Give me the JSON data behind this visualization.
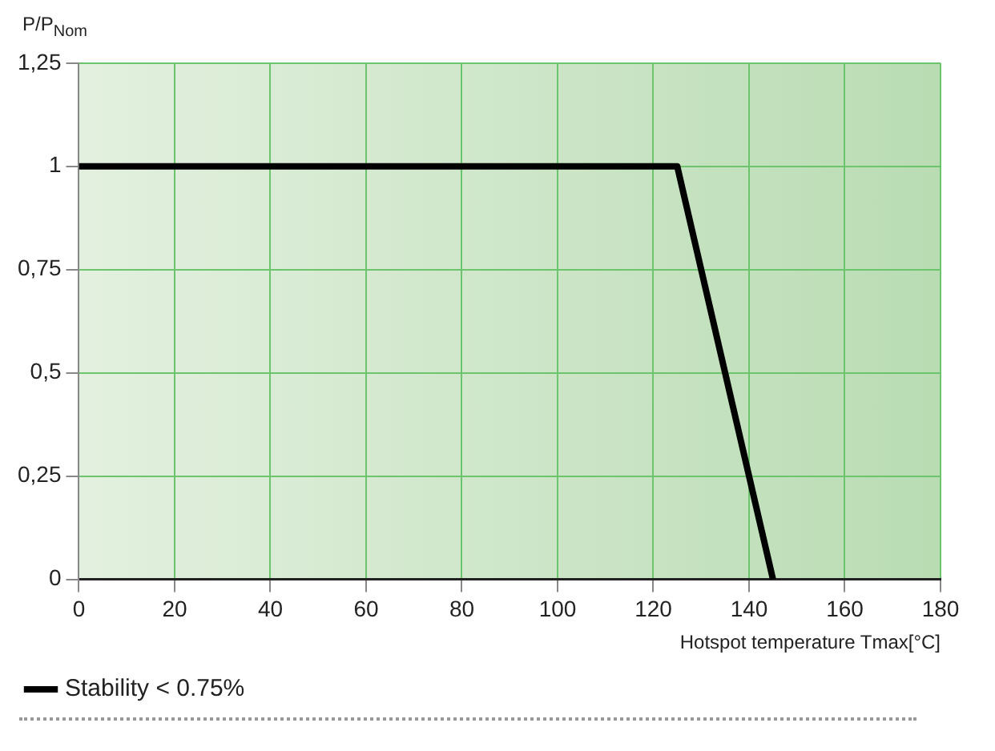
{
  "chart_data": {
    "type": "line",
    "xlabel": "Hotspot temperature Tmax[°C]",
    "ylabel": "P/P$_{Nom}$",
    "x": [
      0,
      125,
      145
    ],
    "series": [
      {
        "name": "Stability < 0.75%",
        "color": "#000000",
        "values": [
          1,
          1,
          0
        ]
      }
    ],
    "xlim": [
      0,
      180
    ],
    "xticks": [
      0,
      20,
      40,
      60,
      80,
      100,
      120,
      140,
      160,
      180
    ],
    "ylim": [
      0,
      1.25
    ],
    "yticks": [
      0,
      {
        "value": 0.25,
        "label": "0,25"
      },
      {
        "value": 0.5,
        "label": "0,5"
      },
      {
        "value": 0.75,
        "label": "0,75"
      },
      1,
      {
        "value": 1.25,
        "label": "1,25"
      }
    ],
    "grid": true,
    "legend": "bottom left",
    "marker": "none",
    "line_style": "solid"
  }
}
